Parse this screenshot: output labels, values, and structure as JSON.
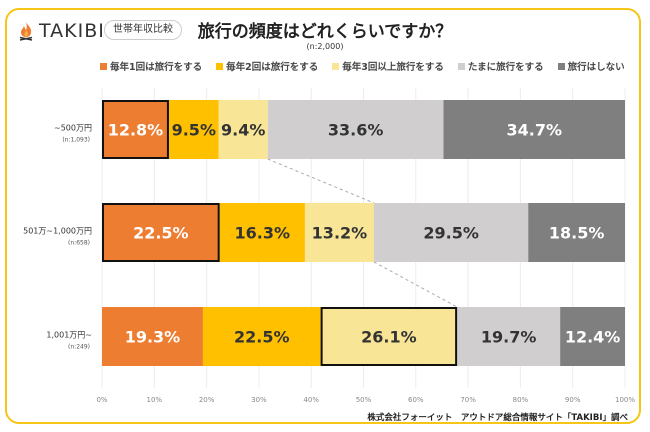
{
  "header": {
    "brand": "TAKIBI",
    "badge": "世帯年収比較",
    "title": "旅行の頻度はどれくらいですか？",
    "subtitle": "(n:2,000)"
  },
  "footer": {
    "credit": "株式会社フォーイット　アウトドア総合情報サイト「TAKIBI」調べ"
  },
  "colors": {
    "frame": "#f5c518",
    "flame": "#ee7d31"
  },
  "chart_data": {
    "type": "bar",
    "orientation": "horizontal-stacked-100",
    "title": "旅行の頻度はどれくらいですか？",
    "subtitle": "(n:2,000)",
    "xlabel": "",
    "ylabel": "",
    "xlim": [
      0,
      100
    ],
    "x_ticks": [
      "0%",
      "10%",
      "20%",
      "30%",
      "40%",
      "50%",
      "60%",
      "70%",
      "80%",
      "90%",
      "100%"
    ],
    "grid": true,
    "legend_position": "top",
    "categories": [
      {
        "label": "~500万円",
        "n": "(n:1,093)"
      },
      {
        "label": "501万~1,000万円",
        "n": "(n:658)"
      },
      {
        "label": "1,001万円~",
        "n": "(n:249)"
      }
    ],
    "series": [
      {
        "name": "毎年1回は旅行をする",
        "color": "#ed7d31",
        "text_color": "#ffffff",
        "values": [
          12.8,
          22.5,
          19.3
        ]
      },
      {
        "name": "毎年2回は旅行をする",
        "color": "#ffc000",
        "text_color": "#333333",
        "values": [
          9.5,
          16.3,
          22.5
        ]
      },
      {
        "name": "毎年3回以上旅行をする",
        "color": "#f8e596",
        "text_color": "#333333",
        "values": [
          9.4,
          13.2,
          26.1
        ]
      },
      {
        "name": "たまに旅行をする",
        "color": "#d0cece",
        "text_color": "#333333",
        "values": [
          33.6,
          29.5,
          19.7
        ]
      },
      {
        "name": "旅行はしない",
        "color": "#7f7f7f",
        "text_color": "#ffffff",
        "values": [
          34.7,
          18.5,
          12.4
        ]
      }
    ],
    "highlighted": [
      {
        "category": 0,
        "series": 0
      },
      {
        "category": 1,
        "series": 0
      },
      {
        "category": 2,
        "series": 2
      }
    ]
  }
}
